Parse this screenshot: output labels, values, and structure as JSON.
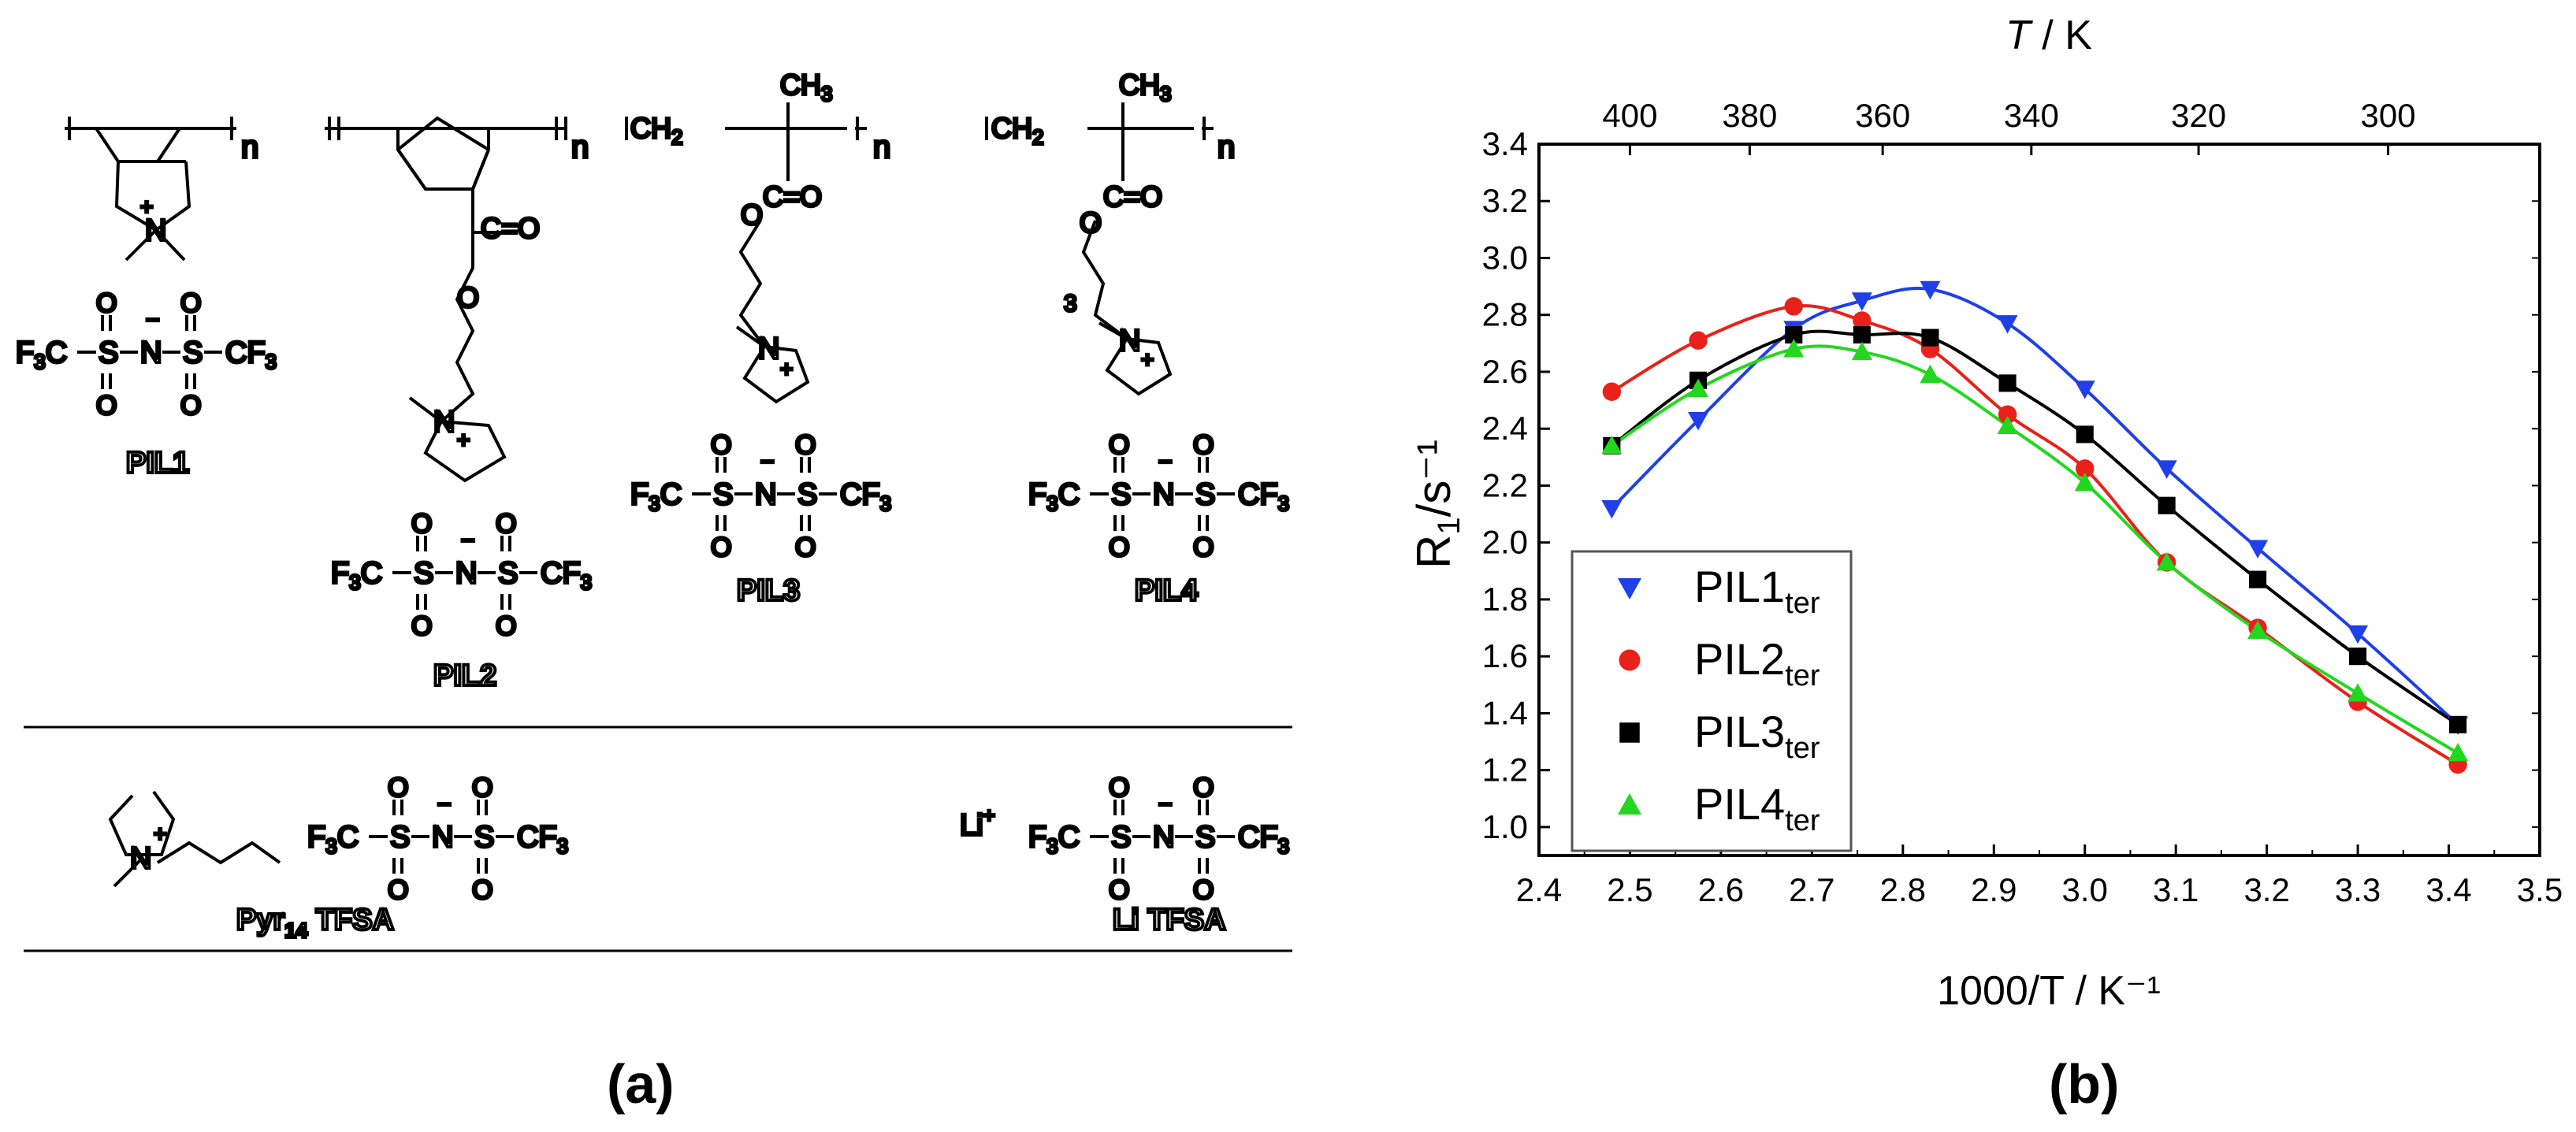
{
  "panel_a": {
    "label": "(a)",
    "structures": [
      {
        "name": "PIL1"
      },
      {
        "name": "PIL2"
      },
      {
        "name": "PIL3"
      },
      {
        "name": "PIL4"
      }
    ],
    "repeat_subscript": "n",
    "methyl_label": "CH3",
    "ch2_label": "CH2",
    "tfsa_anion": {
      "left": "F3C",
      "right": "CF3",
      "s": "S",
      "n": "N",
      "o": "O"
    },
    "carbonyl": "C=O",
    "ester_o": "O",
    "n_plus": "N",
    "charge_plus": "+",
    "charge_minus": "−",
    "spacer_3": "3",
    "salts": {
      "pyr14": {
        "name_main": "Pyr",
        "name_sub": "14",
        "name_rest": " TFSA"
      },
      "li": {
        "cation": "Li",
        "cation_charge": "+",
        "name": "Li TFSA"
      }
    }
  },
  "panel_b": {
    "label": "(b)"
  },
  "chart_data": {
    "type": "scatter",
    "xlabel": "1000/T / K⁻¹",
    "ylabel_main": "R",
    "ylabel_sub": "1",
    "ylabel_rest": "/s⁻¹",
    "top_axis_label_italic": "T",
    "top_axis_label_rest": " / K",
    "xlim": [
      2.4,
      3.5
    ],
    "ylim": [
      0.9,
      3.4
    ],
    "xticks": [
      "2.4",
      "2.5",
      "2.6",
      "2.7",
      "2.8",
      "2.9",
      "3.0",
      "3.1",
      "3.2",
      "3.3",
      "3.4",
      "3.5"
    ],
    "yticks": [
      "1.0",
      "1.2",
      "1.4",
      "1.6",
      "1.8",
      "2.0",
      "2.2",
      "2.4",
      "2.6",
      "2.8",
      "3.0",
      "3.2",
      "3.4"
    ],
    "top_ticks": [
      "400",
      "380",
      "360",
      "340",
      "320",
      "300"
    ],
    "top_tick_values_K": [
      400,
      380,
      360,
      340,
      320,
      300
    ],
    "grid": false,
    "legend_position": "bottom-left",
    "x": [
      2.48,
      2.575,
      2.68,
      2.755,
      2.83,
      2.915,
      3.0,
      3.09,
      3.19,
      3.3,
      3.41
    ],
    "series": [
      {
        "name": "PIL1",
        "name_sub": "ter",
        "color": "#1f3fe8",
        "marker": "triangle-down",
        "values": [
          2.12,
          2.43,
          2.75,
          2.85,
          2.89,
          2.77,
          2.54,
          2.26,
          1.98,
          1.68,
          1.36
        ]
      },
      {
        "name": "PIL2",
        "name_sub": "ter",
        "color": "#e8211a",
        "marker": "circle",
        "values": [
          2.53,
          2.71,
          2.83,
          2.78,
          2.68,
          2.45,
          2.26,
          1.93,
          1.7,
          1.44,
          1.22
        ]
      },
      {
        "name": "PIL3",
        "name_sub": "ter",
        "color": "#000000",
        "marker": "square",
        "values": [
          2.34,
          2.57,
          2.73,
          2.73,
          2.72,
          2.56,
          2.38,
          2.13,
          1.87,
          1.6,
          1.36
        ]
      },
      {
        "name": "PIL4",
        "name_sub": "ter",
        "color": "#22d81e",
        "marker": "triangle-up",
        "values": [
          2.34,
          2.54,
          2.68,
          2.67,
          2.59,
          2.41,
          2.21,
          1.93,
          1.69,
          1.47,
          1.26
        ]
      }
    ]
  }
}
